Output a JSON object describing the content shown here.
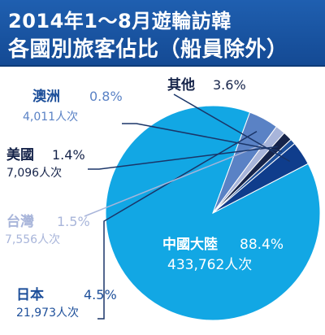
{
  "title": {
    "line1": "2014年1～8月遊輪訪韓",
    "line2": "各國別旅客佔比（船員除外）"
  },
  "colors": {
    "china": "#12a7e4",
    "japan": "#5a82c5",
    "taiwan": "#a8b5da",
    "usa": "#16244a",
    "australia": "#1d4f9a",
    "other": "#0f3d8c",
    "callout_line": "#1a3568"
  },
  "chart_data": {
    "type": "pie",
    "title": "2014年1～8月遊輪訪韓 各國別旅客佔比（船員除外）",
    "slices": [
      {
        "label": "中國大陸",
        "percent": 88.4,
        "percent_text": "88.4%",
        "count_text": "433,762人次"
      },
      {
        "label": "日本",
        "percent": 4.5,
        "percent_text": "4.5%",
        "count_text": "21,973人次"
      },
      {
        "label": "台灣",
        "percent": 1.5,
        "percent_text": "1.5%",
        "count_text": "7,556人次"
      },
      {
        "label": "美國",
        "percent": 1.4,
        "percent_text": "1.4%",
        "count_text": "7,096人次"
      },
      {
        "label": "澳洲",
        "percent": 0.8,
        "percent_text": "0.8%",
        "count_text": "4,011人次"
      },
      {
        "label": "其他",
        "percent": 3.6,
        "percent_text": "3.6%",
        "count_text": ""
      }
    ]
  }
}
